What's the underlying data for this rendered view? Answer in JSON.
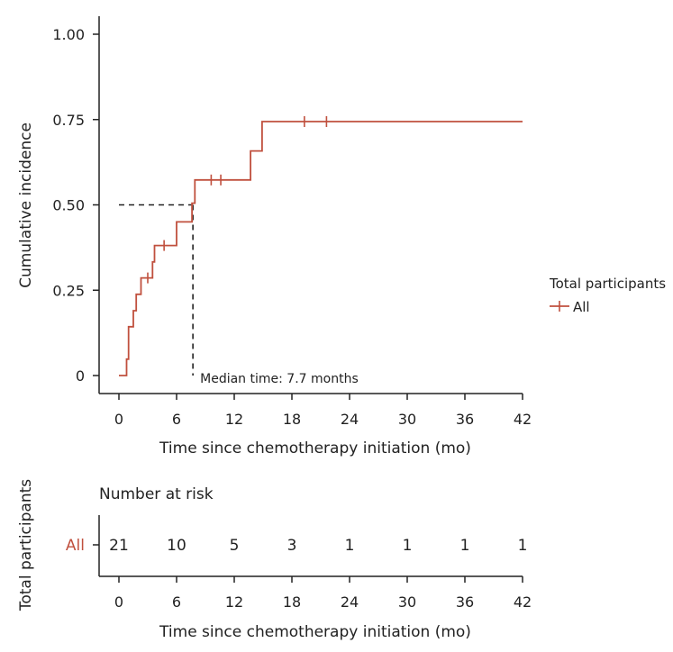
{
  "colors": {
    "series": "#c0503e",
    "axis": "#222222",
    "median": "#222222"
  },
  "chart_data": [
    {
      "type": "line",
      "subtype": "step",
      "title": "",
      "xlabel": "Time since chemotherapy initiation (mo)",
      "ylabel": "Cumulative incidence",
      "xlim": [
        0,
        42
      ],
      "ylim": [
        0,
        1
      ],
      "xticks": [
        0,
        6,
        12,
        18,
        24,
        30,
        36,
        42
      ],
      "xtick_labels": [
        "0",
        "6",
        "12",
        "18",
        "24",
        "30",
        "36",
        "42"
      ],
      "yticks": [
        0,
        0.25,
        0.5,
        0.75,
        1.0
      ],
      "ytick_labels": [
        "0",
        "0.25",
        "0.50",
        "0.75",
        "1.00"
      ],
      "legend": {
        "title": "Total participants",
        "position": "right",
        "entries": [
          "All"
        ]
      },
      "series": [
        {
          "name": "All",
          "step_points": [
            [
              0,
              0
            ],
            [
              0.8,
              0
            ],
            [
              0.8,
              0.048
            ],
            [
              1.0,
              0.048
            ],
            [
              1.0,
              0.143
            ],
            [
              1.5,
              0.143
            ],
            [
              1.5,
              0.19
            ],
            [
              1.8,
              0.19
            ],
            [
              1.8,
              0.238
            ],
            [
              2.3,
              0.238
            ],
            [
              2.3,
              0.286
            ],
            [
              3.5,
              0.286
            ],
            [
              3.5,
              0.333
            ],
            [
              3.7,
              0.333
            ],
            [
              3.7,
              0.381
            ],
            [
              6.0,
              0.381
            ],
            [
              6.0,
              0.45
            ],
            [
              7.6,
              0.45
            ],
            [
              7.6,
              0.505
            ],
            [
              7.9,
              0.505
            ],
            [
              7.9,
              0.573
            ],
            [
              13.7,
              0.573
            ],
            [
              13.7,
              0.658
            ],
            [
              14.9,
              0.658
            ],
            [
              14.9,
              0.744
            ],
            [
              42,
              0.744
            ]
          ],
          "censor_marks": [
            [
              3.0,
              0.286
            ],
            [
              4.7,
              0.381
            ],
            [
              9.6,
              0.573
            ],
            [
              10.6,
              0.573
            ],
            [
              19.3,
              0.744
            ],
            [
              21.6,
              0.744
            ]
          ]
        }
      ],
      "median": {
        "time": 7.7,
        "value": 0.5,
        "label": "Median time: 7.7 months"
      }
    },
    {
      "type": "table",
      "title": "Number at risk",
      "row_group_label": "Total participants",
      "xlabel": "Time since chemotherapy initiation (mo)",
      "xlim": [
        0,
        42
      ],
      "xticks": [
        0,
        6,
        12,
        18,
        24,
        30,
        36,
        42
      ],
      "xtick_labels": [
        "0",
        "6",
        "12",
        "18",
        "24",
        "30",
        "36",
        "42"
      ],
      "rows": [
        {
          "name": "All",
          "values": [
            "21",
            "10",
            "5",
            "3",
            "1",
            "1",
            "1",
            "1"
          ]
        }
      ]
    }
  ]
}
